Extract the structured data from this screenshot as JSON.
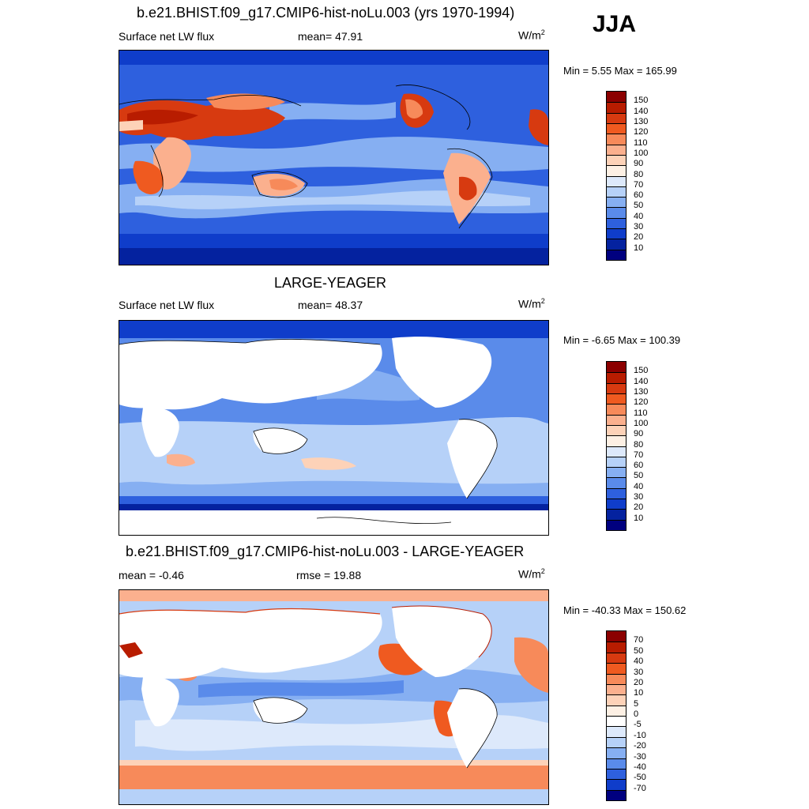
{
  "season": "JJA",
  "panels": [
    {
      "title": "b.e21.BHIST.f09_g17.CMIP6-hist-noLu.003 (yrs 1970-1994)",
      "left_label": "Surface net LW flux",
      "center_label": "mean=  47.91",
      "unit_base": "W/m",
      "unit_exp": "2",
      "minmax": "Min =   5.55 Max = 165.99",
      "colorbar": {
        "ticks": [
          "150",
          "140",
          "130",
          "120",
          "110",
          "100",
          "90",
          "80",
          "70",
          "60",
          "50",
          "40",
          "30",
          "20",
          "10"
        ],
        "colors": [
          "#8b0000",
          "#b81c00",
          "#d73a10",
          "#ef5a20",
          "#f78a5a",
          "#fbb08e",
          "#fdd2b8",
          "#fdf0e4",
          "#dde9fb",
          "#b6d1f8",
          "#86aff2",
          "#5a8bea",
          "#2e60de",
          "#0f3dca",
          "#04229f",
          "#00007f"
        ]
      }
    },
    {
      "title": "LARGE-YEAGER",
      "left_label": "Surface net LW flux",
      "center_label": "mean=  48.37",
      "unit_base": "W/m",
      "unit_exp": "2",
      "minmax": "Min =  -6.65 Max = 100.39",
      "colorbar": {
        "ticks": [
          "150",
          "140",
          "130",
          "120",
          "110",
          "100",
          "90",
          "80",
          "70",
          "60",
          "50",
          "40",
          "30",
          "20",
          "10"
        ],
        "colors": [
          "#8b0000",
          "#b81c00",
          "#d73a10",
          "#ef5a20",
          "#f78a5a",
          "#fbb08e",
          "#fdd2b8",
          "#fdf0e4",
          "#dde9fb",
          "#b6d1f8",
          "#86aff2",
          "#5a8bea",
          "#2e60de",
          "#0f3dca",
          "#04229f",
          "#00007f"
        ]
      }
    },
    {
      "title": "b.e21.BHIST.f09_g17.CMIP6-hist-noLu.003 - LARGE-YEAGER",
      "left_label": "mean =  -0.46",
      "center_label": "rmse =  19.88",
      "unit_base": "W/m",
      "unit_exp": "2",
      "minmax": "Min = -40.33 Max = 150.62",
      "colorbar": {
        "ticks": [
          "70",
          "50",
          "40",
          "30",
          "20",
          "10",
          "5",
          "0",
          "-5",
          "-10",
          "-20",
          "-30",
          "-40",
          "-50",
          "-70"
        ],
        "colors": [
          "#8b0000",
          "#b81c00",
          "#d73a10",
          "#ef5a20",
          "#f78a5a",
          "#fbb08e",
          "#fdd2b8",
          "#fdf0e4",
          "#ffffff",
          "#dde9fb",
          "#b6d1f8",
          "#86aff2",
          "#5a8bea",
          "#2e60de",
          "#0f3dca",
          "#00007f"
        ]
      }
    }
  ]
}
